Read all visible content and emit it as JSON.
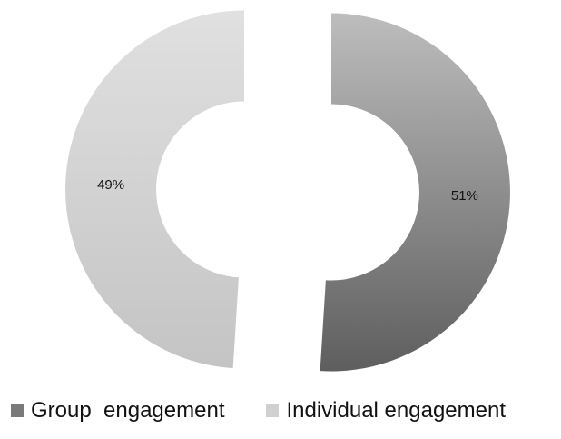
{
  "chart_data": {
    "type": "pie",
    "variant": "exploded-donut",
    "title": "",
    "series": [
      {
        "name": "Group  engagement",
        "value": 51,
        "label": "51%",
        "color": "#7a7a7a"
      },
      {
        "name": "Individual engagement",
        "value": 49,
        "label": "49%",
        "color": "#d0d0d0"
      }
    ],
    "legend_position": "bottom"
  }
}
